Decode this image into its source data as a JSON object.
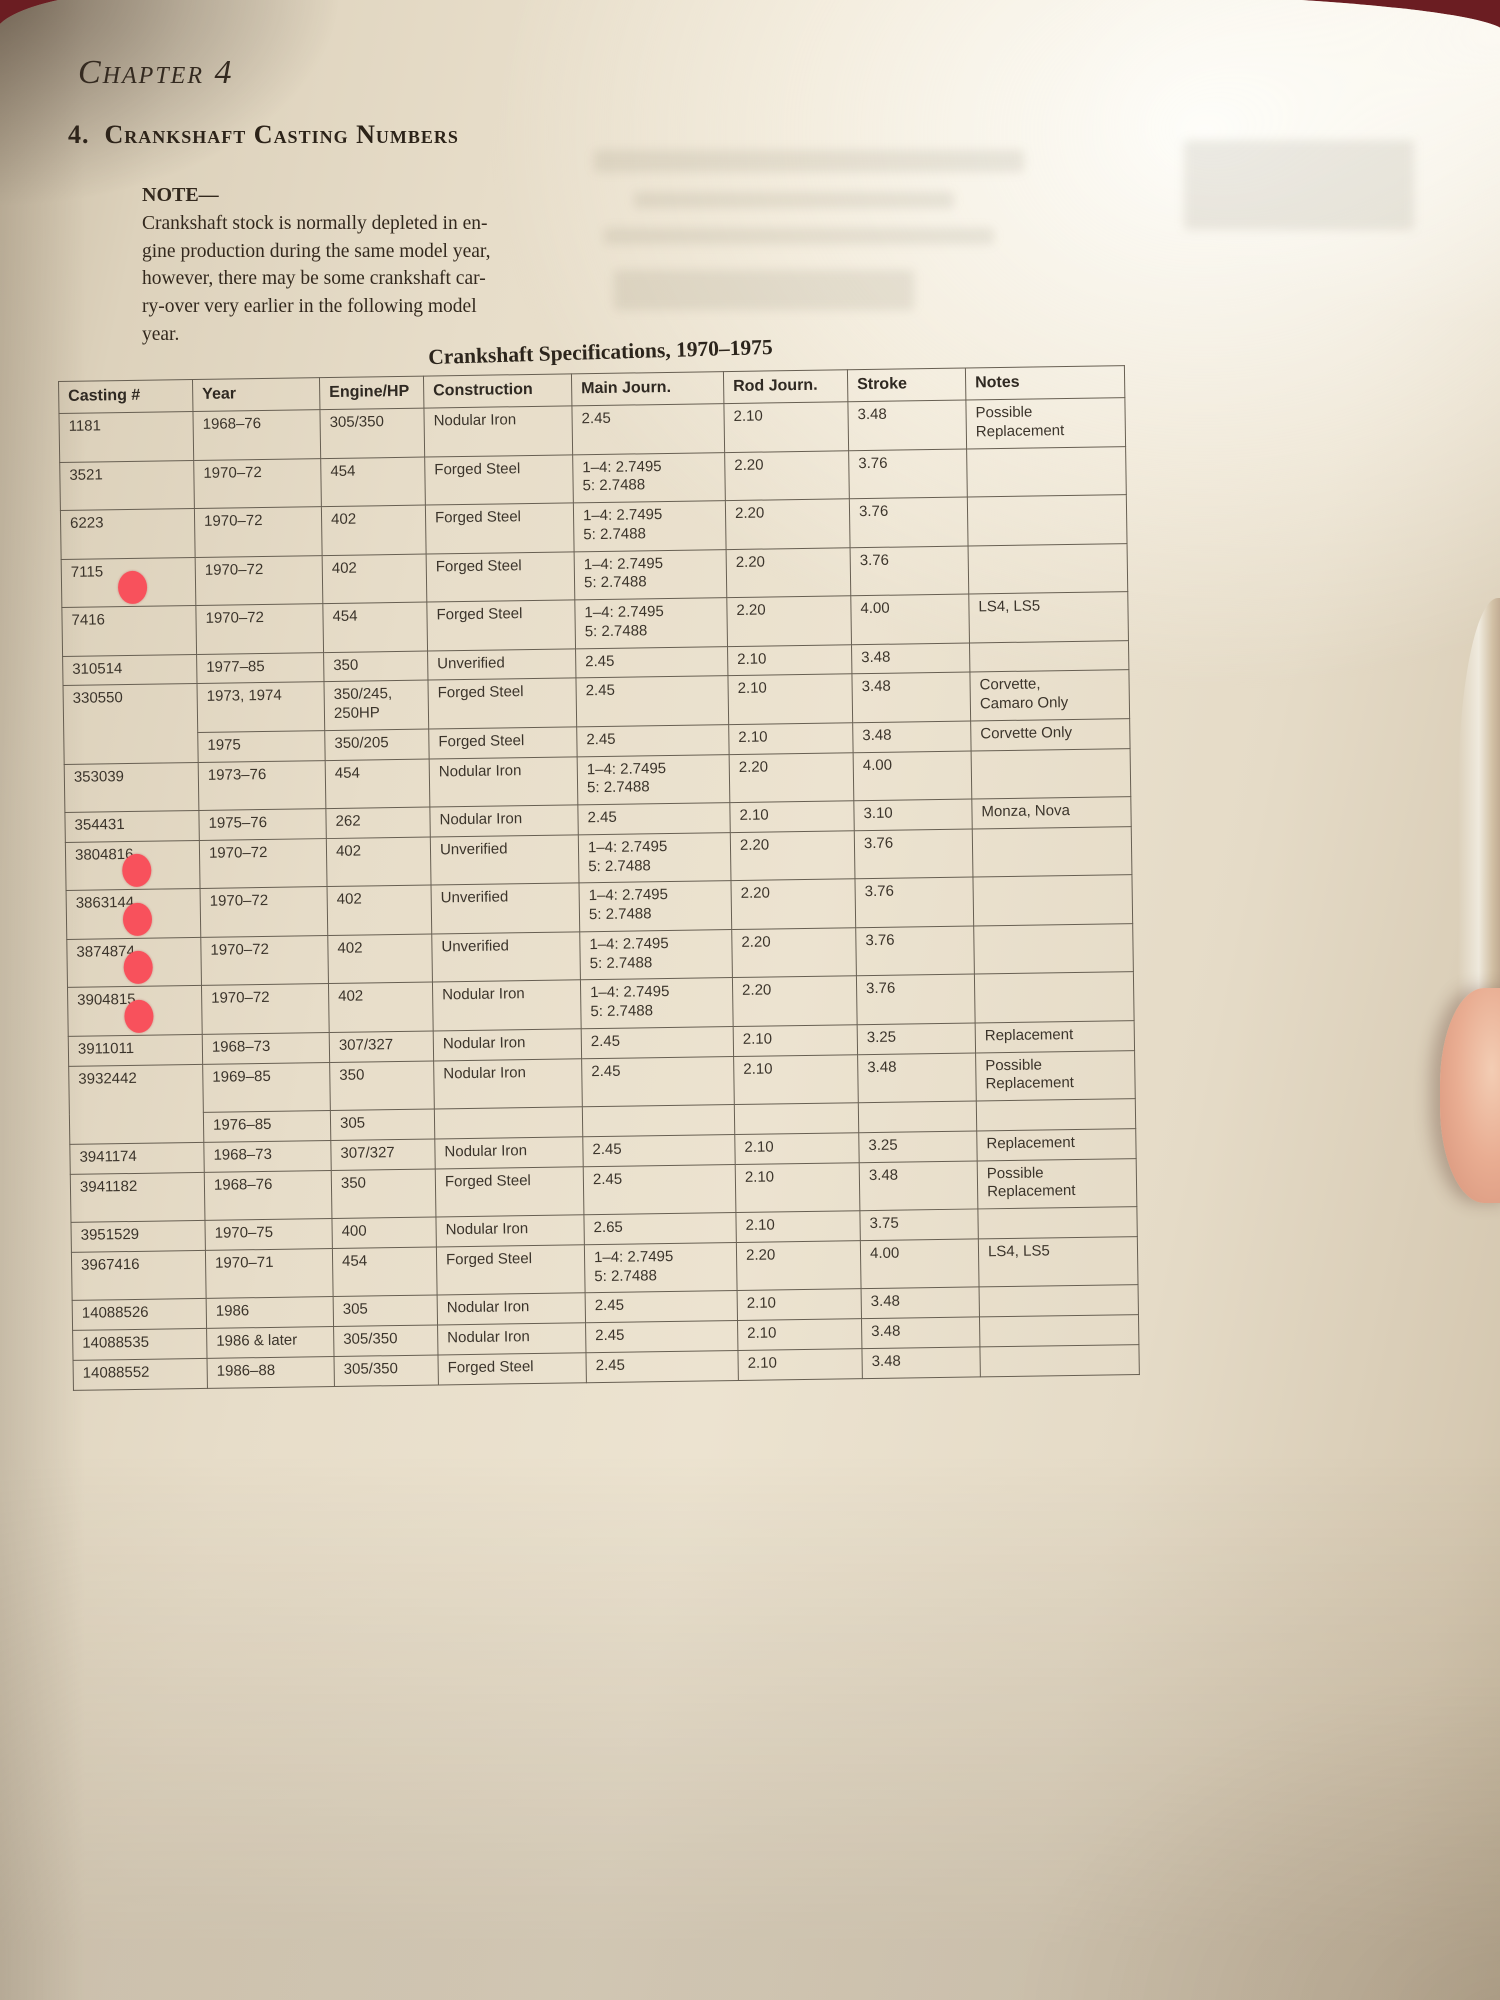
{
  "page": {
    "chapter": "Chapter 4",
    "section_title": "4.  Crankshaft Casting Numbers",
    "note_label": "NOTE—",
    "note_text": "Crankshaft stock is normally depleted in en-\ngine production during the same model year,\nhowever, there may be some crankshaft car-\nry-over very earlier in the following model\nyear."
  },
  "table": {
    "title": "Crankshaft Specifications, 1970–1975",
    "marker_color": "#f8515c",
    "columns": [
      "Casting #",
      "Year",
      "Engine/HP",
      "Construction",
      "Main Journ.",
      "Rod Journ.",
      "Stroke",
      "Notes"
    ],
    "rows": [
      {
        "casting": "1181",
        "year": "1968–76",
        "engine": "305/350",
        "construction": "Nodular Iron",
        "main": "2.45",
        "rod": "2.10",
        "stroke": "3.48",
        "notes": "Possible\nReplacement"
      },
      {
        "casting": "3521",
        "year": "1970–72",
        "engine": "454",
        "construction": "Forged Steel",
        "main": "1–4: 2.7495\n5: 2.7488",
        "rod": "2.20",
        "stroke": "3.76",
        "notes": ""
      },
      {
        "casting": "6223",
        "year": "1970–72",
        "engine": "402",
        "construction": "Forged Steel",
        "main": "1–4: 2.7495\n5: 2.7488",
        "rod": "2.20",
        "stroke": "3.76",
        "notes": ""
      },
      {
        "casting": "7115",
        "marker": true,
        "year": "1970–72",
        "engine": "402",
        "construction": "Forged Steel",
        "main": "1–4: 2.7495\n5: 2.7488",
        "rod": "2.20",
        "stroke": "3.76",
        "notes": ""
      },
      {
        "casting": "7416",
        "year": "1970–72",
        "engine": "454",
        "construction": "Forged Steel",
        "main": "1–4: 2.7495\n5: 2.7488",
        "rod": "2.20",
        "stroke": "4.00",
        "notes": "LS4, LS5"
      },
      {
        "casting": "310514",
        "year": "1977–85",
        "engine": "350",
        "construction": "Unverified",
        "main": "2.45",
        "rod": "2.10",
        "stroke": "3.48",
        "notes": ""
      },
      {
        "casting": "330550",
        "rowspan": 2,
        "year": "1973, 1974",
        "engine": "350/245,\n250HP",
        "construction": "Forged Steel",
        "main": "2.45",
        "rod": "2.10",
        "stroke": "3.48",
        "notes": "Corvette,\nCamaro Only"
      },
      {
        "cont": true,
        "year": "1975",
        "engine": "350/205",
        "construction": "Forged Steel",
        "main": "2.45",
        "rod": "2.10",
        "stroke": "3.48",
        "notes": "Corvette Only"
      },
      {
        "casting": "353039",
        "year": "1973–76",
        "engine": "454",
        "construction": "Nodular Iron",
        "main": "1–4: 2.7495\n5: 2.7488",
        "rod": "2.20",
        "stroke": "4.00",
        "notes": ""
      },
      {
        "casting": "354431",
        "year": "1975–76",
        "engine": "262",
        "construction": "Nodular Iron",
        "main": "2.45",
        "rod": "2.10",
        "stroke": "3.10",
        "notes": "Monza, Nova"
      },
      {
        "casting": "3804816",
        "marker": true,
        "year": "1970–72",
        "engine": "402",
        "construction": "Unverified",
        "main": "1–4: 2.7495\n5: 2.7488",
        "rod": "2.20",
        "stroke": "3.76",
        "notes": ""
      },
      {
        "casting": "3863144",
        "marker": true,
        "year": "1970–72",
        "engine": "402",
        "construction": "Unverified",
        "main": "1–4: 2.7495\n5: 2.7488",
        "rod": "2.20",
        "stroke": "3.76",
        "notes": ""
      },
      {
        "casting": "3874874",
        "marker": true,
        "year": "1970–72",
        "engine": "402",
        "construction": "Unverified",
        "main": "1–4: 2.7495\n5: 2.7488",
        "rod": "2.20",
        "stroke": "3.76",
        "notes": ""
      },
      {
        "casting": "3904815",
        "marker": true,
        "year": "1970–72",
        "engine": "402",
        "construction": "Nodular Iron",
        "main": "1–4: 2.7495\n5: 2.7488",
        "rod": "2.20",
        "stroke": "3.76",
        "notes": ""
      },
      {
        "casting": "3911011",
        "year": "1968–73",
        "engine": "307/327",
        "construction": "Nodular Iron",
        "main": "2.45",
        "rod": "2.10",
        "stroke": "3.25",
        "notes": "Replacement"
      },
      {
        "casting": "3932442",
        "rowspan": 2,
        "year": "1969–85",
        "engine": "350",
        "construction": "Nodular Iron",
        "main": "2.45",
        "rod": "2.10",
        "stroke": "3.48",
        "notes": "Possible\nReplacement"
      },
      {
        "cont": true,
        "year": "1976–85",
        "engine": "305",
        "construction": "",
        "main": "",
        "rod": "",
        "stroke": "",
        "notes": ""
      },
      {
        "casting": "3941174",
        "year": "1968–73",
        "engine": "307/327",
        "construction": "Nodular Iron",
        "main": "2.45",
        "rod": "2.10",
        "stroke": "3.25",
        "notes": "Replacement"
      },
      {
        "casting": "3941182",
        "year": "1968–76",
        "engine": "350",
        "construction": "Forged Steel",
        "main": "2.45",
        "rod": "2.10",
        "stroke": "3.48",
        "notes": "Possible\nReplacement"
      },
      {
        "casting": "3951529",
        "year": "1970–75",
        "engine": "400",
        "construction": "Nodular Iron",
        "main": "2.65",
        "rod": "2.10",
        "stroke": "3.75",
        "notes": ""
      },
      {
        "casting": "3967416",
        "year": "1970–71",
        "engine": "454",
        "construction": "Forged Steel",
        "main": "1–4: 2.7495\n5: 2.7488",
        "rod": "2.20",
        "stroke": "4.00",
        "notes": "LS4, LS5"
      },
      {
        "casting": "14088526",
        "year": "1986",
        "engine": "305",
        "construction": "Nodular Iron",
        "main": "2.45",
        "rod": "2.10",
        "stroke": "3.48",
        "notes": ""
      },
      {
        "casting": "14088535",
        "year": "1986 & later",
        "engine": "305/350",
        "construction": "Nodular Iron",
        "main": "2.45",
        "rod": "2.10",
        "stroke": "3.48",
        "notes": ""
      },
      {
        "casting": "14088552",
        "year": "1986–88",
        "engine": "305/350",
        "construction": "Forged Steel",
        "main": "2.45",
        "rod": "2.10",
        "stroke": "3.48",
        "notes": ""
      }
    ]
  }
}
